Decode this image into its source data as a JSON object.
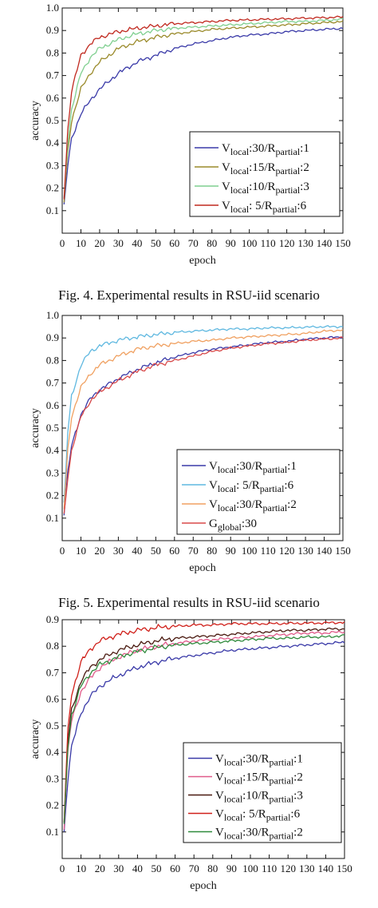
{
  "captions": {
    "fig4": "Fig. 4.  Experimental results in RSU-iid scenario",
    "fig5": "Fig. 5.  Experimental results in RSU-iid scenario"
  },
  "chart_data": [
    {
      "type": "line",
      "xlabel": "epoch",
      "ylabel": "accuracy",
      "xlim": [
        0,
        150
      ],
      "ylim": [
        0.0,
        1.0
      ],
      "xticks": [
        0,
        10,
        20,
        30,
        40,
        50,
        60,
        70,
        80,
        90,
        100,
        110,
        120,
        130,
        140,
        150
      ],
      "yticks": [
        0.1,
        0.2,
        0.3,
        0.4,
        0.5,
        0.6,
        0.7,
        0.8,
        0.9,
        1.0
      ],
      "legend_position": "lower-right",
      "grid": false,
      "series": [
        {
          "name": "Vlocal:30/Rpartial:1",
          "label_main": "V",
          "label_sub1": "local",
          "label_mid": ":30/R",
          "label_sub2": "partial",
          "label_end": ":1",
          "color": "#3a3aa8",
          "x": [
            1,
            3,
            5,
            10,
            15,
            20,
            30,
            40,
            50,
            60,
            70,
            80,
            90,
            100,
            110,
            120,
            130,
            140,
            150
          ],
          "y": [
            0.12,
            0.3,
            0.42,
            0.53,
            0.59,
            0.64,
            0.71,
            0.76,
            0.79,
            0.82,
            0.84,
            0.855,
            0.87,
            0.88,
            0.885,
            0.895,
            0.9,
            0.905,
            0.91
          ]
        },
        {
          "name": "Vlocal:15/Rpartial:2",
          "label_main": "V",
          "label_sub1": "local",
          "label_mid": ":15/R",
          "label_sub2": "partial",
          "label_end": ":2",
          "color": "#9a8a2a",
          "x": [
            1,
            3,
            5,
            10,
            15,
            20,
            30,
            40,
            50,
            60,
            70,
            80,
            90,
            100,
            110,
            120,
            130,
            140,
            150
          ],
          "y": [
            0.14,
            0.36,
            0.5,
            0.64,
            0.71,
            0.76,
            0.82,
            0.85,
            0.87,
            0.885,
            0.895,
            0.905,
            0.91,
            0.915,
            0.92,
            0.925,
            0.93,
            0.935,
            0.94
          ]
        },
        {
          "name": "Vlocal:10/Rpartial:3",
          "label_main": "V",
          "label_sub1": "local",
          "label_mid": ":10/R",
          "label_sub2": "partial",
          "label_end": ":3",
          "color": "#7fcf8f",
          "x": [
            1,
            3,
            5,
            10,
            15,
            20,
            30,
            40,
            50,
            60,
            70,
            80,
            90,
            100,
            110,
            120,
            130,
            140,
            150
          ],
          "y": [
            0.15,
            0.4,
            0.55,
            0.71,
            0.78,
            0.82,
            0.86,
            0.885,
            0.9,
            0.91,
            0.915,
            0.92,
            0.925,
            0.93,
            0.935,
            0.94,
            0.94,
            0.945,
            0.95
          ]
        },
        {
          "name": "Vlocal: 5/Rpartial:6",
          "label_main": "V",
          "label_sub1": "local",
          "label_mid": ": 5/R",
          "label_sub2": "partial",
          "label_end": ":6",
          "color": "#c0281e",
          "x": [
            1,
            3,
            5,
            10,
            15,
            20,
            30,
            40,
            50,
            60,
            70,
            80,
            90,
            100,
            110,
            120,
            130,
            140,
            150
          ],
          "y": [
            0.16,
            0.46,
            0.63,
            0.79,
            0.84,
            0.87,
            0.895,
            0.91,
            0.92,
            0.93,
            0.935,
            0.94,
            0.945,
            0.947,
            0.95,
            0.952,
            0.955,
            0.957,
            0.96
          ]
        }
      ]
    },
    {
      "type": "line",
      "xlabel": "epoch",
      "ylabel": "accuracy",
      "xlim": [
        0,
        150
      ],
      "ylim": [
        0.0,
        1.0
      ],
      "xticks": [
        0,
        10,
        20,
        30,
        40,
        50,
        60,
        70,
        80,
        90,
        100,
        110,
        120,
        130,
        140,
        150
      ],
      "yticks": [
        0.1,
        0.2,
        0.3,
        0.4,
        0.5,
        0.6,
        0.7,
        0.8,
        0.9,
        1.0
      ],
      "legend_position": "lower-right",
      "grid": false,
      "series": [
        {
          "name": "Vlocal:30/Rpartial:1",
          "label_main": "V",
          "label_sub1": "local",
          "label_mid": ":30/R",
          "label_sub2": "partial",
          "label_end": ":1",
          "color": "#3a3aa8",
          "x": [
            1,
            3,
            5,
            10,
            15,
            20,
            30,
            40,
            50,
            60,
            70,
            80,
            90,
            100,
            110,
            120,
            130,
            140,
            150
          ],
          "y": [
            0.12,
            0.3,
            0.42,
            0.56,
            0.63,
            0.67,
            0.72,
            0.76,
            0.79,
            0.815,
            0.835,
            0.85,
            0.86,
            0.87,
            0.88,
            0.885,
            0.895,
            0.9,
            0.905
          ]
        },
        {
          "name": "Vlocal: 5/Rpartial:6",
          "label_main": "V",
          "label_sub1": "local",
          "label_mid": ": 5/R",
          "label_sub2": "partial",
          "label_end": ":6",
          "color": "#5fb8e0",
          "x": [
            1,
            3,
            5,
            10,
            15,
            20,
            30,
            40,
            50,
            60,
            70,
            80,
            90,
            100,
            110,
            120,
            130,
            140,
            150
          ],
          "y": [
            0.16,
            0.48,
            0.64,
            0.78,
            0.84,
            0.865,
            0.89,
            0.905,
            0.915,
            0.925,
            0.93,
            0.935,
            0.94,
            0.94,
            0.945,
            0.945,
            0.948,
            0.95,
            0.95
          ]
        },
        {
          "name": "Vlocal:30/Rpartial:2",
          "label_main": "V",
          "label_sub1": "local",
          "label_mid": ":30/R",
          "label_sub2": "partial",
          "label_end": ":2",
          "color": "#f0a060",
          "x": [
            1,
            3,
            5,
            10,
            15,
            20,
            30,
            40,
            50,
            60,
            70,
            80,
            90,
            100,
            110,
            120,
            130,
            140,
            150
          ],
          "y": [
            0.14,
            0.4,
            0.55,
            0.68,
            0.74,
            0.78,
            0.82,
            0.85,
            0.865,
            0.875,
            0.885,
            0.89,
            0.9,
            0.905,
            0.91,
            0.915,
            0.92,
            0.93,
            0.935
          ]
        },
        {
          "name": "Gglobal:30",
          "label_main": "G",
          "label_sub1": "global",
          "label_mid": ":30",
          "label_sub2": "",
          "label_end": "",
          "color": "#d84848",
          "x": [
            1,
            3,
            5,
            10,
            15,
            20,
            30,
            40,
            50,
            60,
            70,
            80,
            90,
            100,
            110,
            120,
            130,
            140,
            150
          ],
          "y": [
            0.11,
            0.28,
            0.4,
            0.55,
            0.62,
            0.66,
            0.71,
            0.75,
            0.78,
            0.8,
            0.82,
            0.84,
            0.855,
            0.865,
            0.875,
            0.88,
            0.89,
            0.895,
            0.9
          ]
        }
      ]
    },
    {
      "type": "line",
      "xlabel": "epoch",
      "ylabel": "accuracy",
      "xlim": [
        0,
        150
      ],
      "ylim": [
        0.0,
        0.9
      ],
      "xticks": [
        0,
        10,
        20,
        30,
        40,
        50,
        60,
        70,
        80,
        90,
        100,
        110,
        120,
        130,
        140,
        150
      ],
      "yticks": [
        0.1,
        0.2,
        0.3,
        0.4,
        0.5,
        0.6,
        0.7,
        0.8,
        0.9
      ],
      "legend_position": "lower-right",
      "grid": false,
      "series": [
        {
          "name": "Vlocal:30/Rpartial:1",
          "label_main": "V",
          "label_sub1": "local",
          "label_mid": ":30/R",
          "label_sub2": "partial",
          "label_end": ":1",
          "color": "#3a3aa8",
          "x": [
            1,
            3,
            5,
            10,
            15,
            20,
            30,
            40,
            50,
            60,
            70,
            80,
            90,
            100,
            110,
            120,
            130,
            140,
            150
          ],
          "y": [
            0.1,
            0.3,
            0.42,
            0.55,
            0.61,
            0.65,
            0.69,
            0.72,
            0.74,
            0.755,
            0.765,
            0.775,
            0.785,
            0.79,
            0.795,
            0.8,
            0.805,
            0.81,
            0.815
          ]
        },
        {
          "name": "Vlocal:15/Rpartial:2",
          "label_main": "V",
          "label_sub1": "local",
          "label_mid": ":15/R",
          "label_sub2": "partial",
          "label_end": ":2",
          "color": "#e05a8a",
          "x": [
            1,
            3,
            5,
            10,
            15,
            20,
            30,
            40,
            50,
            60,
            70,
            80,
            90,
            100,
            110,
            120,
            130,
            140,
            150
          ],
          "y": [
            0.12,
            0.4,
            0.52,
            0.63,
            0.68,
            0.72,
            0.76,
            0.785,
            0.8,
            0.81,
            0.82,
            0.825,
            0.83,
            0.835,
            0.84,
            0.845,
            0.85,
            0.85,
            0.855
          ]
        },
        {
          "name": "Vlocal:10/Rpartial:3",
          "label_main": "V",
          "label_sub1": "local",
          "label_mid": ":10/R",
          "label_sub2": "partial",
          "label_end": ":3",
          "color": "#4a1a10",
          "x": [
            1,
            3,
            5,
            10,
            15,
            20,
            30,
            40,
            50,
            60,
            70,
            80,
            90,
            100,
            110,
            120,
            130,
            140,
            150
          ],
          "y": [
            0.13,
            0.44,
            0.56,
            0.67,
            0.72,
            0.75,
            0.785,
            0.805,
            0.82,
            0.83,
            0.835,
            0.84,
            0.845,
            0.85,
            0.855,
            0.86,
            0.86,
            0.865,
            0.865
          ]
        },
        {
          "name": "Vlocal: 5/Rpartial:6",
          "label_main": "V",
          "label_sub1": "local",
          "label_mid": ": 5/R",
          "label_sub2": "partial",
          "label_end": ":6",
          "color": "#d0201a",
          "x": [
            1,
            3,
            5,
            10,
            15,
            20,
            30,
            40,
            50,
            60,
            70,
            80,
            90,
            100,
            110,
            120,
            130,
            140,
            150
          ],
          "y": [
            0.14,
            0.48,
            0.62,
            0.74,
            0.79,
            0.82,
            0.845,
            0.86,
            0.87,
            0.875,
            0.88,
            0.88,
            0.885,
            0.885,
            0.885,
            0.886,
            0.887,
            0.888,
            0.89
          ]
        },
        {
          "name": "Vlocal:30/Rpartial:2",
          "label_main": "V",
          "label_sub1": "local",
          "label_mid": ":30/R",
          "label_sub2": "partial",
          "label_end": ":2",
          "color": "#2f8a3c",
          "x": [
            1,
            3,
            5,
            10,
            15,
            20,
            30,
            40,
            50,
            60,
            70,
            80,
            90,
            100,
            110,
            120,
            130,
            140,
            150
          ],
          "y": [
            0.12,
            0.42,
            0.54,
            0.65,
            0.7,
            0.73,
            0.76,
            0.78,
            0.795,
            0.805,
            0.81,
            0.815,
            0.82,
            0.825,
            0.83,
            0.83,
            0.835,
            0.835,
            0.84
          ]
        }
      ]
    }
  ]
}
